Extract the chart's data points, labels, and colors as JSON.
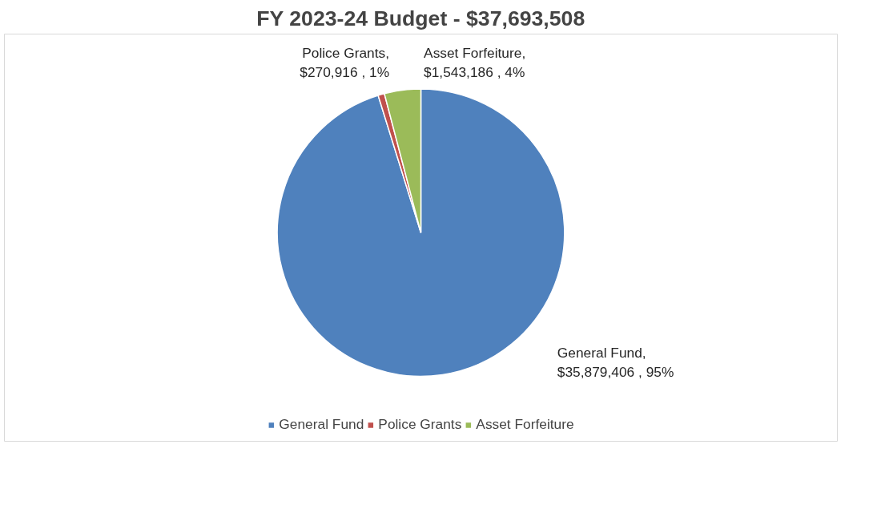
{
  "chart_data": {
    "type": "pie",
    "title": "FY 2023-24 Budget - $37,693,508",
    "categories": [
      "General Fund",
      "Police Grants",
      "Asset Forfeiture"
    ],
    "values": [
      35879406,
      270916,
      1543186
    ],
    "colors": [
      "#4f81bd",
      "#c0504d",
      "#9bbb59"
    ],
    "value_labels": [
      "General Fund,\n$35,879,406 , 95%",
      "Police Grants,\n$270,916 , 1%",
      "Asset Forfeiture,\n$1,543,186 , 4%"
    ],
    "legend": "bottom"
  }
}
